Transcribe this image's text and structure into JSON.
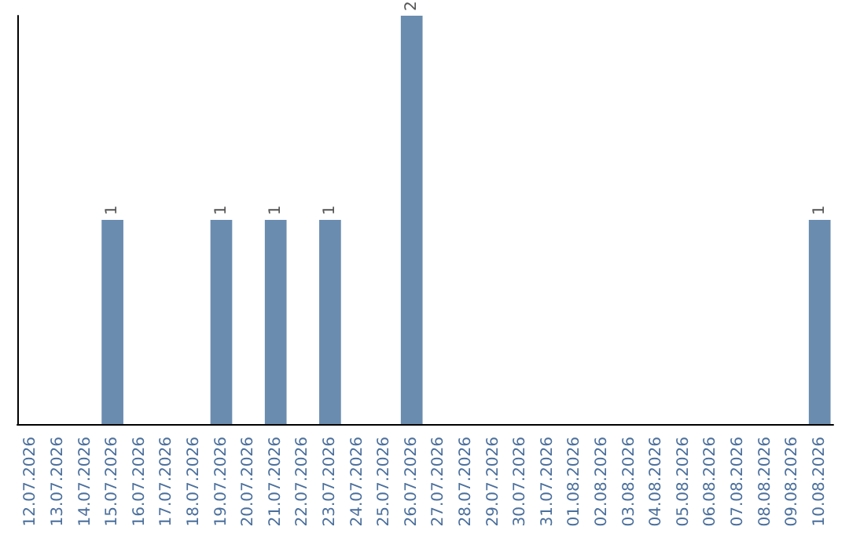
{
  "chart_data": {
    "type": "bar",
    "categories": [
      "12.07.2026",
      "13.07.2026",
      "14.07.2026",
      "15.07.2026",
      "16.07.2026",
      "17.07.2026",
      "18.07.2026",
      "19.07.2026",
      "20.07.2026",
      "21.07.2026",
      "22.07.2026",
      "23.07.2026",
      "24.07.2026",
      "25.07.2026",
      "26.07.2026",
      "27.07.2026",
      "28.07.2026",
      "29.07.2026",
      "30.07.2026",
      "31.07.2026",
      "01.08.2026",
      "02.08.2026",
      "03.08.2026",
      "04.08.2026",
      "05.08.2026",
      "06.08.2026",
      "07.08.2026",
      "08.08.2026",
      "09.08.2026",
      "10.08.2026"
    ],
    "values": [
      0,
      0,
      0,
      1,
      0,
      0,
      0,
      1,
      0,
      1,
      0,
      1,
      0,
      0,
      2,
      0,
      0,
      0,
      0,
      0,
      0,
      0,
      0,
      0,
      0,
      0,
      0,
      0,
      0,
      1
    ],
    "color": "#6a8caf",
    "ylim": [
      0,
      2
    ],
    "value_labels": [
      null,
      null,
      null,
      "1",
      null,
      null,
      null,
      "1",
      null,
      "1",
      null,
      "1",
      null,
      null,
      "2",
      null,
      null,
      null,
      null,
      null,
      null,
      null,
      null,
      null,
      null,
      null,
      null,
      null,
      null,
      "1"
    ],
    "tick_labels": "x",
    "grid": false
  }
}
